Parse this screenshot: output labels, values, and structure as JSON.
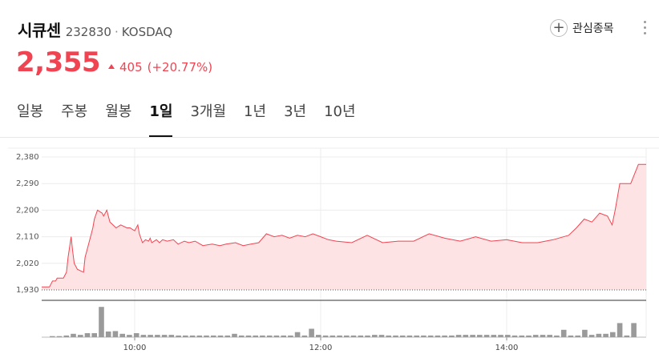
{
  "stock": {
    "name": "시큐센",
    "code": "232830",
    "separator": "·",
    "market": "KOSDAQ"
  },
  "favorite": {
    "label": "관심종목",
    "icon": "plus-icon"
  },
  "more_icon": "more-vertical-icon",
  "quote": {
    "price": "2,355",
    "change": "405",
    "change_pct": "(+20.77%)",
    "direction_icon": "triangle-up-icon"
  },
  "tabs": [
    {
      "label": "일봉",
      "active": false
    },
    {
      "label": "주봉",
      "active": false
    },
    {
      "label": "월봉",
      "active": false
    },
    {
      "label": "1일",
      "active": true
    },
    {
      "label": "3개월",
      "active": false
    },
    {
      "label": "1년",
      "active": false
    },
    {
      "label": "3년",
      "active": false
    },
    {
      "label": "10년",
      "active": false
    }
  ],
  "colors": {
    "up": "#f04452",
    "fill": "#fde3e3",
    "volume": "#9a9a9a"
  },
  "chart_data": {
    "type": "area",
    "y_ticks": [
      "2,380",
      "2,290",
      "2,200",
      "2,110",
      "2,020",
      "1,930"
    ],
    "ylim": [
      1930,
      2380
    ],
    "x_ticks": [
      "10:00",
      "12:00",
      "14:00"
    ],
    "grid": true,
    "series": [
      {
        "values_x": [
          "09:00",
          "09:05",
          "09:07",
          "09:09",
          "09:10",
          "09:14",
          "09:16",
          "09:17",
          "09:19",
          "09:20",
          "09:21",
          "09:23",
          "09:27",
          "09:28",
          "09:30",
          "09:32",
          "09:33",
          "09:34",
          "09:36",
          "09:39",
          "09:40",
          "09:42",
          "09:44",
          "09:46",
          "09:48",
          "09:51",
          "09:55",
          "09:57",
          "10:00",
          "10:02",
          "10:03",
          "10:05",
          "10:07",
          "10:09",
          "10:10",
          "10:11",
          "10:14",
          "10:16",
          "10:18",
          "10:21",
          "10:25",
          "10:28",
          "10:32",
          "10:35",
          "10:39",
          "10:44",
          "10:50",
          "10:55",
          "10:59",
          "11:05",
          "11:10",
          "11:15",
          "11:20",
          "11:25",
          "11:30",
          "11:35",
          "11:40",
          "11:45",
          "11:50",
          "11:55",
          "12:00",
          "12:05",
          "12:10",
          "12:20",
          "12:30",
          "12:40",
          "12:50",
          "13:00",
          "13:10",
          "13:20",
          "13:30",
          "13:40",
          "13:50",
          "14:00",
          "14:10",
          "14:20",
          "14:30",
          "14:40",
          "14:45",
          "14:50",
          "14:55",
          "15:00",
          "15:05",
          "15:08",
          "15:10",
          "15:13",
          "15:16",
          "15:20",
          "15:25",
          "15:30"
        ],
        "values": [
          1940,
          1940,
          1960,
          1960,
          1970,
          1970,
          1990,
          2040,
          2110,
          2060,
          2020,
          2000,
          1990,
          2040,
          2080,
          2120,
          2140,
          2170,
          2200,
          2190,
          2180,
          2200,
          2160,
          2150,
          2140,
          2150,
          2140,
          2140,
          2130,
          2150,
          2120,
          2090,
          2100,
          2095,
          2105,
          2090,
          2100,
          2090,
          2100,
          2095,
          2100,
          2085,
          2095,
          2090,
          2095,
          2080,
          2085,
          2080,
          2085,
          2090,
          2080,
          2085,
          2090,
          2120,
          2110,
          2115,
          2105,
          2115,
          2110,
          2120,
          2110,
          2100,
          2095,
          2090,
          2115,
          2090,
          2095,
          2095,
          2120,
          2105,
          2095,
          2110,
          2095,
          2100,
          2090,
          2090,
          2100,
          2115,
          2140,
          2170,
          2160,
          2190,
          2180,
          2150,
          2200,
          2290,
          2290,
          2290,
          2355,
          2355
        ]
      }
    ],
    "volume": [
      0.03,
      0.03,
      0.05,
      0.1,
      0.07,
      0.12,
      0.12,
      0.9,
      0.17,
      0.18,
      0.1,
      0.07,
      0.12,
      0.07,
      0.07,
      0.07,
      0.07,
      0.07,
      0.05,
      0.05,
      0.05,
      0.05,
      0.05,
      0.05,
      0.05,
      0.05,
      0.1,
      0.05,
      0.05,
      0.05,
      0.05,
      0.05,
      0.05,
      0.05,
      0.05,
      0.15,
      0.05,
      0.25,
      0.07,
      0.05,
      0.05,
      0.05,
      0.05,
      0.05,
      0.05,
      0.05,
      0.07,
      0.07,
      0.05,
      0.05,
      0.05,
      0.05,
      0.05,
      0.05,
      0.05,
      0.05,
      0.05,
      0.05,
      0.07,
      0.07,
      0.07,
      0.07,
      0.07,
      0.07,
      0.07,
      0.07,
      0.05,
      0.05,
      0.05,
      0.07,
      0.07,
      0.07,
      0.05,
      0.22,
      0.05,
      0.05,
      0.22,
      0.07,
      0.1,
      0.1,
      0.15,
      0.42,
      0.05,
      0.42
    ]
  }
}
